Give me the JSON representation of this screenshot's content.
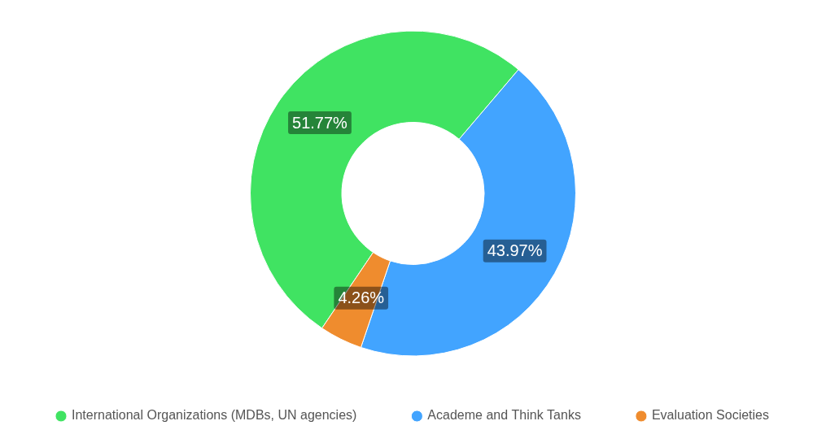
{
  "chart_data": {
    "type": "doughnut",
    "categories": [
      "International Organizations (MDBs, UN agencies)",
      "Academe and Think Tanks",
      "Evaluation Societies"
    ],
    "values": [
      51.77,
      43.97,
      4.26
    ],
    "value_labels": [
      "51.77%",
      "43.97%",
      "4.26%"
    ],
    "colors": [
      "#40e362",
      "#42a4ff",
      "#ef8c2e"
    ],
    "data_labels": true,
    "legend": "bottom"
  }
}
